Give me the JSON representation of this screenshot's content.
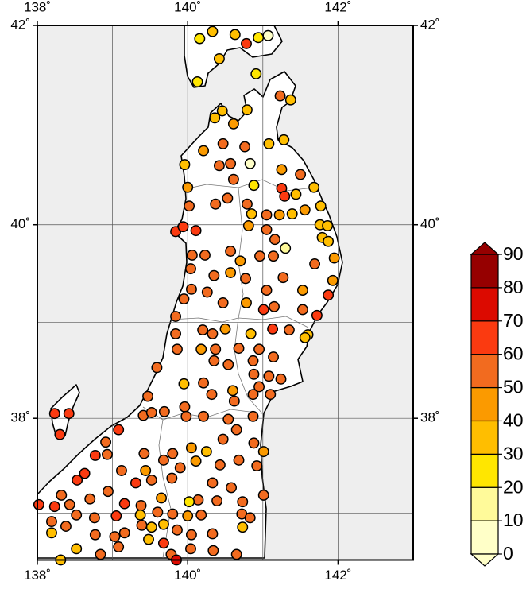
{
  "map": {
    "xlim": [
      138,
      143
    ],
    "ylim": [
      36.5,
      42
    ],
    "xticks": [
      {
        "value": 138,
        "label": "138˚"
      },
      {
        "value": 140,
        "label": "140˚"
      },
      {
        "value": 142,
        "label": "142˚"
      }
    ],
    "yticks": [
      {
        "value": 38,
        "label": "38˚"
      },
      {
        "value": 40,
        "label": "40˚"
      },
      {
        "value": 42,
        "label": "42˚"
      }
    ],
    "grid": {
      "lon": [
        139,
        140,
        141,
        142
      ],
      "lat": [
        37,
        38,
        39,
        40,
        41
      ]
    },
    "points": {
      "lon": [
        140.16,
        140.33,
        140.63,
        140.94,
        141.07,
        140.78,
        140.42,
        140.13,
        140.91,
        141.23,
        141.37,
        140.46,
        140.79,
        140.36,
        140.61,
        140.21,
        140.47,
        140.76,
        141.08,
        141.28,
        140.83,
        139.96,
        140.42,
        140.57,
        141.25,
        141.5,
        140.0,
        140.61,
        140.88,
        141.25,
        141.29,
        141.44,
        141.68,
        140.37,
        140.53,
        140.79,
        141.56,
        141.77,
        140.02,
        140.85,
        141.05,
        141.22,
        141.39,
        140.81,
        141.76,
        141.86,
        139.84,
        139.94,
        140.11,
        141.05,
        141.16,
        141.79,
        141.87,
        141.95,
        141.3,
        140.06,
        140.23,
        140.57,
        140.96,
        141.14,
        140.7,
        140.57,
        140.35,
        140.04,
        140.77,
        141.27,
        141.69,
        141.93,
        141.05,
        140.05,
        139.95,
        140.26,
        140.47,
        140.78,
        141.53,
        141.87,
        141.15,
        141.01,
        141.53,
        141.72,
        139.84,
        140.2,
        140.33,
        140.5,
        140.84,
        141.13,
        141.35,
        141.6,
        139.84,
        139.86,
        140.95,
        141.56,
        140.18,
        140.37,
        140.68,
        140.35,
        140.54,
        140.87,
        141.14,
        139.59,
        139.95,
        140.21,
        141.08,
        140.88,
        140.6,
        140.95,
        141.24,
        139.47,
        140.32,
        140.62,
        140.87,
        141.1,
        138.23,
        138.42,
        138.3,
        139.41,
        139.52,
        139.69,
        139.96,
        139.98,
        140.21,
        140.54,
        140.87,
        139.08,
        138.91,
        138.77,
        138.93,
        139.42,
        139.8,
        140.05,
        140.25,
        140.11,
        140.47,
        140.65,
        140.88,
        141.01,
        140.68,
        140.43,
        139.9,
        139.68,
        139.44,
        139.12,
        138.63,
        138.53,
        139.31,
        139.52,
        139.79,
        140.33,
        140.58,
        140.92,
        141.01,
        138.32,
        138.94,
        138.7,
        139.65,
        140.14,
        140.39,
        140.73,
        140.02,
        138.02,
        138.23,
        138.43,
        139.16,
        139.38,
        139.6,
        139.37,
        138.52,
        138.76,
        139.8,
        140.0,
        140.18,
        140.72,
        140.83,
        138.19,
        138.38,
        139.05,
        138.19,
        138.77,
        139.16,
        139.39,
        139.52,
        139.68,
        139.86,
        140.05,
        140.33,
        140.73,
        138.52,
        138.31,
        139.03,
        139.08,
        139.48,
        139.68,
        139.78,
        140.04,
        140.34,
        140.65,
        138.84,
        139.85
      ],
      "lat": [
        41.87,
        41.94,
        41.91,
        41.88,
        41.9,
        41.82,
        41.67,
        41.44,
        41.52,
        41.3,
        41.26,
        41.15,
        41.16,
        41.08,
        41.02,
        40.75,
        40.82,
        40.79,
        40.82,
        40.86,
        40.62,
        40.61,
        40.6,
        40.62,
        40.56,
        40.51,
        40.38,
        40.46,
        40.4,
        40.37,
        40.29,
        40.31,
        40.38,
        40.21,
        40.27,
        40.21,
        40.15,
        40.19,
        40.19,
        40.11,
        40.1,
        40.1,
        40.11,
        39.99,
        40.0,
        39.99,
        39.93,
        39.98,
        39.94,
        39.95,
        39.85,
        39.87,
        39.83,
        39.66,
        39.76,
        39.69,
        39.69,
        39.73,
        39.68,
        39.68,
        39.63,
        39.51,
        39.48,
        39.55,
        39.45,
        39.46,
        39.6,
        39.43,
        39.33,
        39.34,
        39.24,
        39.31,
        39.2,
        39.2,
        39.33,
        39.28,
        39.16,
        39.13,
        39.13,
        39.07,
        39.06,
        38.92,
        38.88,
        38.93,
        38.88,
        38.93,
        38.92,
        38.87,
        38.88,
        38.72,
        38.72,
        38.84,
        38.72,
        38.72,
        38.73,
        38.6,
        38.56,
        38.6,
        38.64,
        38.53,
        38.36,
        38.37,
        38.44,
        38.46,
        38.29,
        38.33,
        38.41,
        38.23,
        38.25,
        38.18,
        38.25,
        38.25,
        38.05,
        38.05,
        37.83,
        38.03,
        38.06,
        38.07,
        38.12,
        38.02,
        38.02,
        37.99,
        38.02,
        37.88,
        37.75,
        37.61,
        37.62,
        37.63,
        37.63,
        37.69,
        37.65,
        37.55,
        37.78,
        37.88,
        37.74,
        37.65,
        37.56,
        37.51,
        37.48,
        37.56,
        37.45,
        37.45,
        37.42,
        37.35,
        37.32,
        37.35,
        37.37,
        37.32,
        37.27,
        37.5,
        37.19,
        37.19,
        37.23,
        37.15,
        37.16,
        37.14,
        37.13,
        37.12,
        37.12,
        37.09,
        37.07,
        37.09,
        37.1,
        37.08,
        37.01,
        36.98,
        36.98,
        36.95,
        36.99,
        36.97,
        36.98,
        36.99,
        36.95,
        36.91,
        36.86,
        36.97,
        36.79,
        36.77,
        36.79,
        36.87,
        36.85,
        36.88,
        36.82,
        36.77,
        36.78,
        36.85,
        36.62,
        36.5,
        36.75,
        36.64,
        36.72,
        36.68,
        36.56,
        36.62,
        36.6,
        36.56,
        36.56,
        36.5
      ],
      "values": [
        25,
        35,
        30,
        20,
        8,
        60,
        30,
        25,
        25,
        55,
        30,
        30,
        35,
        35,
        40,
        40,
        50,
        50,
        30,
        30,
        5,
        30,
        55,
        55,
        45,
        50,
        40,
        50,
        25,
        60,
        65,
        35,
        30,
        55,
        50,
        55,
        45,
        30,
        50,
        30,
        55,
        40,
        30,
        40,
        35,
        30,
        60,
        60,
        60,
        55,
        50,
        35,
        35,
        40,
        15,
        55,
        55,
        55,
        50,
        55,
        45,
        45,
        50,
        55,
        55,
        55,
        50,
        40,
        55,
        55,
        55,
        50,
        55,
        40,
        45,
        60,
        55,
        60,
        55,
        60,
        55,
        50,
        55,
        45,
        30,
        60,
        55,
        35,
        55,
        55,
        55,
        35,
        45,
        50,
        55,
        50,
        50,
        50,
        55,
        50,
        35,
        55,
        55,
        55,
        40,
        55,
        55,
        55,
        50,
        50,
        55,
        55,
        60,
        60,
        60,
        55,
        50,
        55,
        55,
        50,
        55,
        50,
        50,
        60,
        55,
        60,
        55,
        50,
        50,
        40,
        30,
        45,
        55,
        55,
        55,
        40,
        55,
        50,
        55,
        55,
        45,
        55,
        60,
        60,
        60,
        55,
        55,
        50,
        55,
        50,
        55,
        55,
        55,
        55,
        45,
        55,
        55,
        50,
        20,
        60,
        60,
        55,
        60,
        55,
        55,
        35,
        55,
        55,
        55,
        40,
        55,
        50,
        55,
        50,
        55,
        60,
        35,
        55,
        55,
        55,
        35,
        30,
        55,
        55,
        55,
        30,
        30,
        30,
        50,
        55,
        35,
        60,
        55,
        55,
        55,
        55,
        55,
        70
      ]
    },
    "colorbar": {
      "ticks": [
        0,
        10,
        20,
        30,
        40,
        50,
        60,
        70,
        80,
        90
      ],
      "colors": [
        "#ffffc8",
        "#fffa9a",
        "#ffe600",
        "#ffbe00",
        "#fb9a00",
        "#f26b1f",
        "#fb3a10",
        "#dc0a00",
        "#960000"
      ]
    }
  }
}
